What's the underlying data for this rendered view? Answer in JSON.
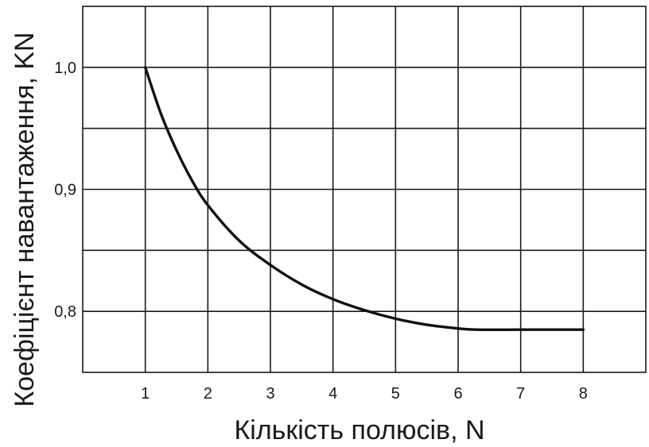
{
  "chart_data": {
    "type": "line",
    "title": "",
    "xlabel": "Кількість полюсів, N",
    "ylabel": "Коефіцієнт навантаження, KN",
    "xlim": [
      0,
      9
    ],
    "ylim": [
      0.75,
      1.05
    ],
    "x_ticks": [
      1,
      2,
      3,
      4,
      5,
      6,
      7,
      8
    ],
    "x_tick_labels": [
      "1",
      "2",
      "3",
      "4",
      "5",
      "6",
      "7",
      "8"
    ],
    "y_ticks": [
      0.8,
      0.9,
      1.0
    ],
    "y_tick_labels": [
      "0,8",
      "0,9",
      "1,0"
    ],
    "grid": true,
    "grid_x_step": 1,
    "grid_y_step": 0.05,
    "line_color": "#111111",
    "series": [
      {
        "x": [
          1,
          1.25,
          1.5,
          1.75,
          2,
          2.5,
          3,
          3.5,
          4,
          4.5,
          5,
          5.5,
          6,
          6.3,
          7,
          8
        ],
        "values": [
          1.0,
          0.962,
          0.932,
          0.907,
          0.887,
          0.858,
          0.838,
          0.822,
          0.81,
          0.801,
          0.794,
          0.789,
          0.786,
          0.785,
          0.785,
          0.785
        ]
      }
    ]
  }
}
